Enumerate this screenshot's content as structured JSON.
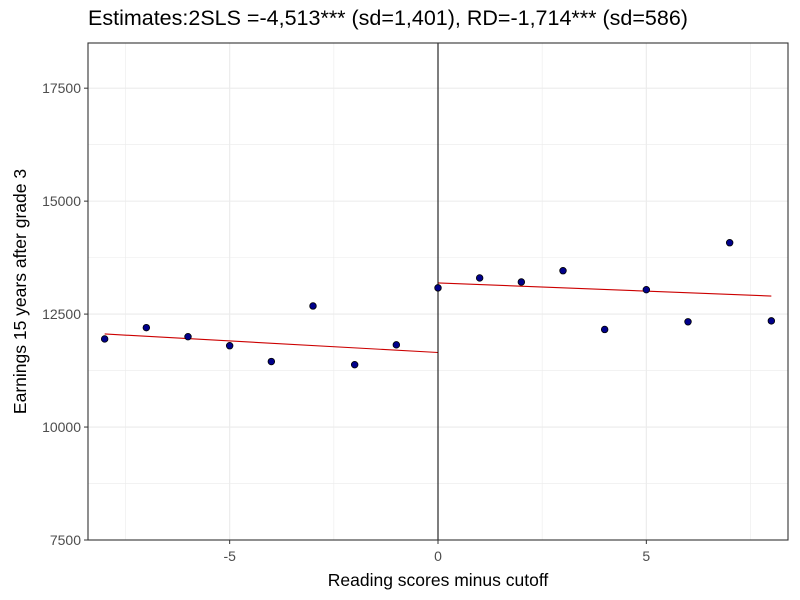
{
  "chart_data": {
    "type": "scatter",
    "title": "Estimates:2SLS =-4,513*** (sd=1,401), RD=-1,714*** (sd=586)",
    "xlabel": "Reading scores minus cutoff",
    "ylabel": "Earnings 15 years after grade 3",
    "xlim": [
      -8.4,
      8.4
    ],
    "ylim": [
      7500,
      18500
    ],
    "x_ticks": [
      -5,
      0,
      5
    ],
    "y_ticks": [
      7500,
      10000,
      12500,
      15000,
      17500
    ],
    "grid": true,
    "cutoff_line_x": 0,
    "points": [
      {
        "x": -8,
        "y": 11950
      },
      {
        "x": -7,
        "y": 12200
      },
      {
        "x": -6,
        "y": 12000
      },
      {
        "x": -5,
        "y": 11800
      },
      {
        "x": -4,
        "y": 11450
      },
      {
        "x": -3,
        "y": 12680
      },
      {
        "x": -2,
        "y": 11380
      },
      {
        "x": -1,
        "y": 11820
      },
      {
        "x": 0,
        "y": 13080
      },
      {
        "x": 1,
        "y": 13300
      },
      {
        "x": 2,
        "y": 13210
      },
      {
        "x": 3,
        "y": 13460
      },
      {
        "x": 4,
        "y": 12160
      },
      {
        "x": 5,
        "y": 13040
      },
      {
        "x": 6,
        "y": 12330
      },
      {
        "x": 7,
        "y": 14080
      },
      {
        "x": 8,
        "y": 12350
      }
    ],
    "fit_lines": [
      {
        "x": [
          -8,
          0
        ],
        "y": [
          12060,
          11650
        ]
      },
      {
        "x": [
          0,
          8
        ],
        "y": [
          13190,
          12900
        ]
      }
    ],
    "colors": {
      "points": "#00008b",
      "fit_line": "#cc0000",
      "cutoff_line": "#000000",
      "grid": "#ebebeb",
      "panel_border": "#333333"
    }
  }
}
